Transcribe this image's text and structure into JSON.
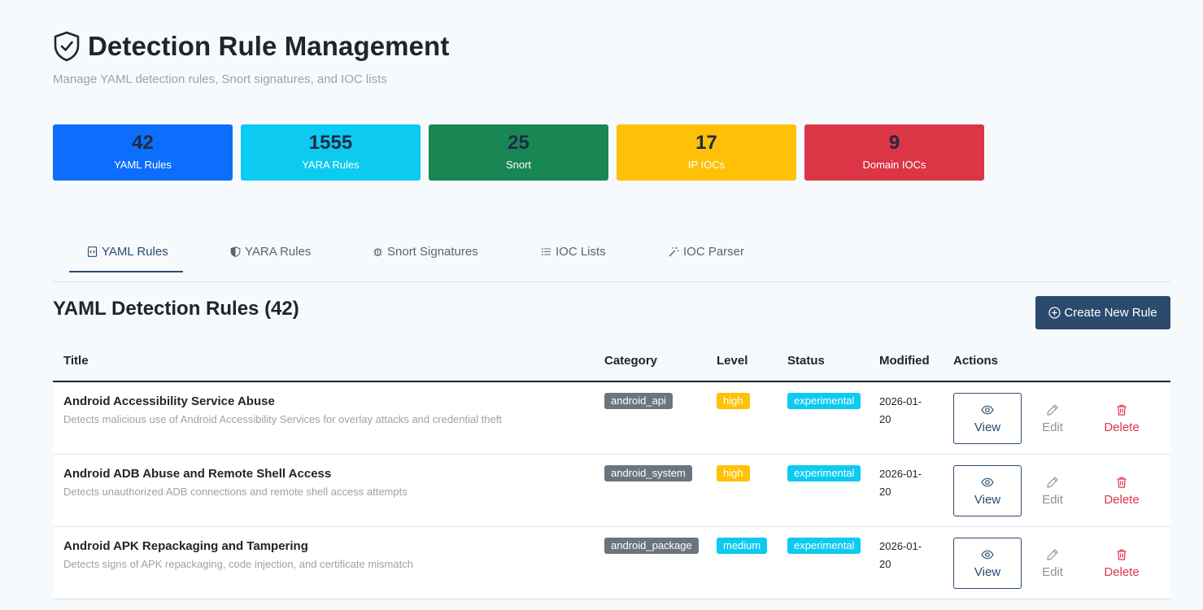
{
  "header": {
    "title": "Detection Rule Management",
    "subtitle": "Manage YAML detection rules, Snort signatures, and IOC lists"
  },
  "stats": [
    {
      "value": "42",
      "label": "YAML Rules",
      "color": "#0d6efd"
    },
    {
      "value": "1555",
      "label": "YARA Rules",
      "color": "#0dcaf0"
    },
    {
      "value": "25",
      "label": "Snort",
      "color": "#198754"
    },
    {
      "value": "17",
      "label": "IP IOCs",
      "color": "#ffc107"
    },
    {
      "value": "9",
      "label": "Domain IOCs",
      "color": "#dc3545"
    }
  ],
  "tabs": [
    {
      "label": "YAML Rules",
      "icon": "file-code-icon",
      "active": true
    },
    {
      "label": "YARA Rules",
      "icon": "shield-half-icon",
      "active": false
    },
    {
      "label": "Snort Signatures",
      "icon": "bug-icon",
      "active": false
    },
    {
      "label": "IOC Lists",
      "icon": "list-icon",
      "active": false
    },
    {
      "label": "IOC Parser",
      "icon": "magic-wand-icon",
      "active": false
    }
  ],
  "section": {
    "title": "YAML Detection Rules (42)",
    "create_label": "Create New Rule"
  },
  "table": {
    "columns": [
      "Title",
      "Category",
      "Level",
      "Status",
      "Modified",
      "Actions"
    ],
    "rows": [
      {
        "title": "Android Accessibility Service Abuse",
        "description": "Detects malicious use of Android Accessibility Services for overlay attacks and credential theft",
        "category": "android_api",
        "level": "high",
        "status": "experimental",
        "modified": "2026-01-20"
      },
      {
        "title": "Android ADB Abuse and Remote Shell Access",
        "description": "Detects unauthorized ADB connections and remote shell access attempts",
        "category": "android_system",
        "level": "high",
        "status": "experimental",
        "modified": "2026-01-20"
      },
      {
        "title": "Android APK Repackaging and Tampering",
        "description": "Detects signs of APK repackaging, code injection, and certificate mismatch",
        "category": "android_package",
        "level": "medium",
        "status": "experimental",
        "modified": "2026-01-20"
      }
    ],
    "actions": {
      "view": "View",
      "edit": "Edit",
      "delete": "Delete"
    }
  },
  "colors": {
    "primary": "#2c4a6e",
    "danger": "#dc3545",
    "level_high": "#ffc107",
    "level_medium": "#0dcaf0",
    "status": "#0dcaf0",
    "category": "#6c757d"
  }
}
